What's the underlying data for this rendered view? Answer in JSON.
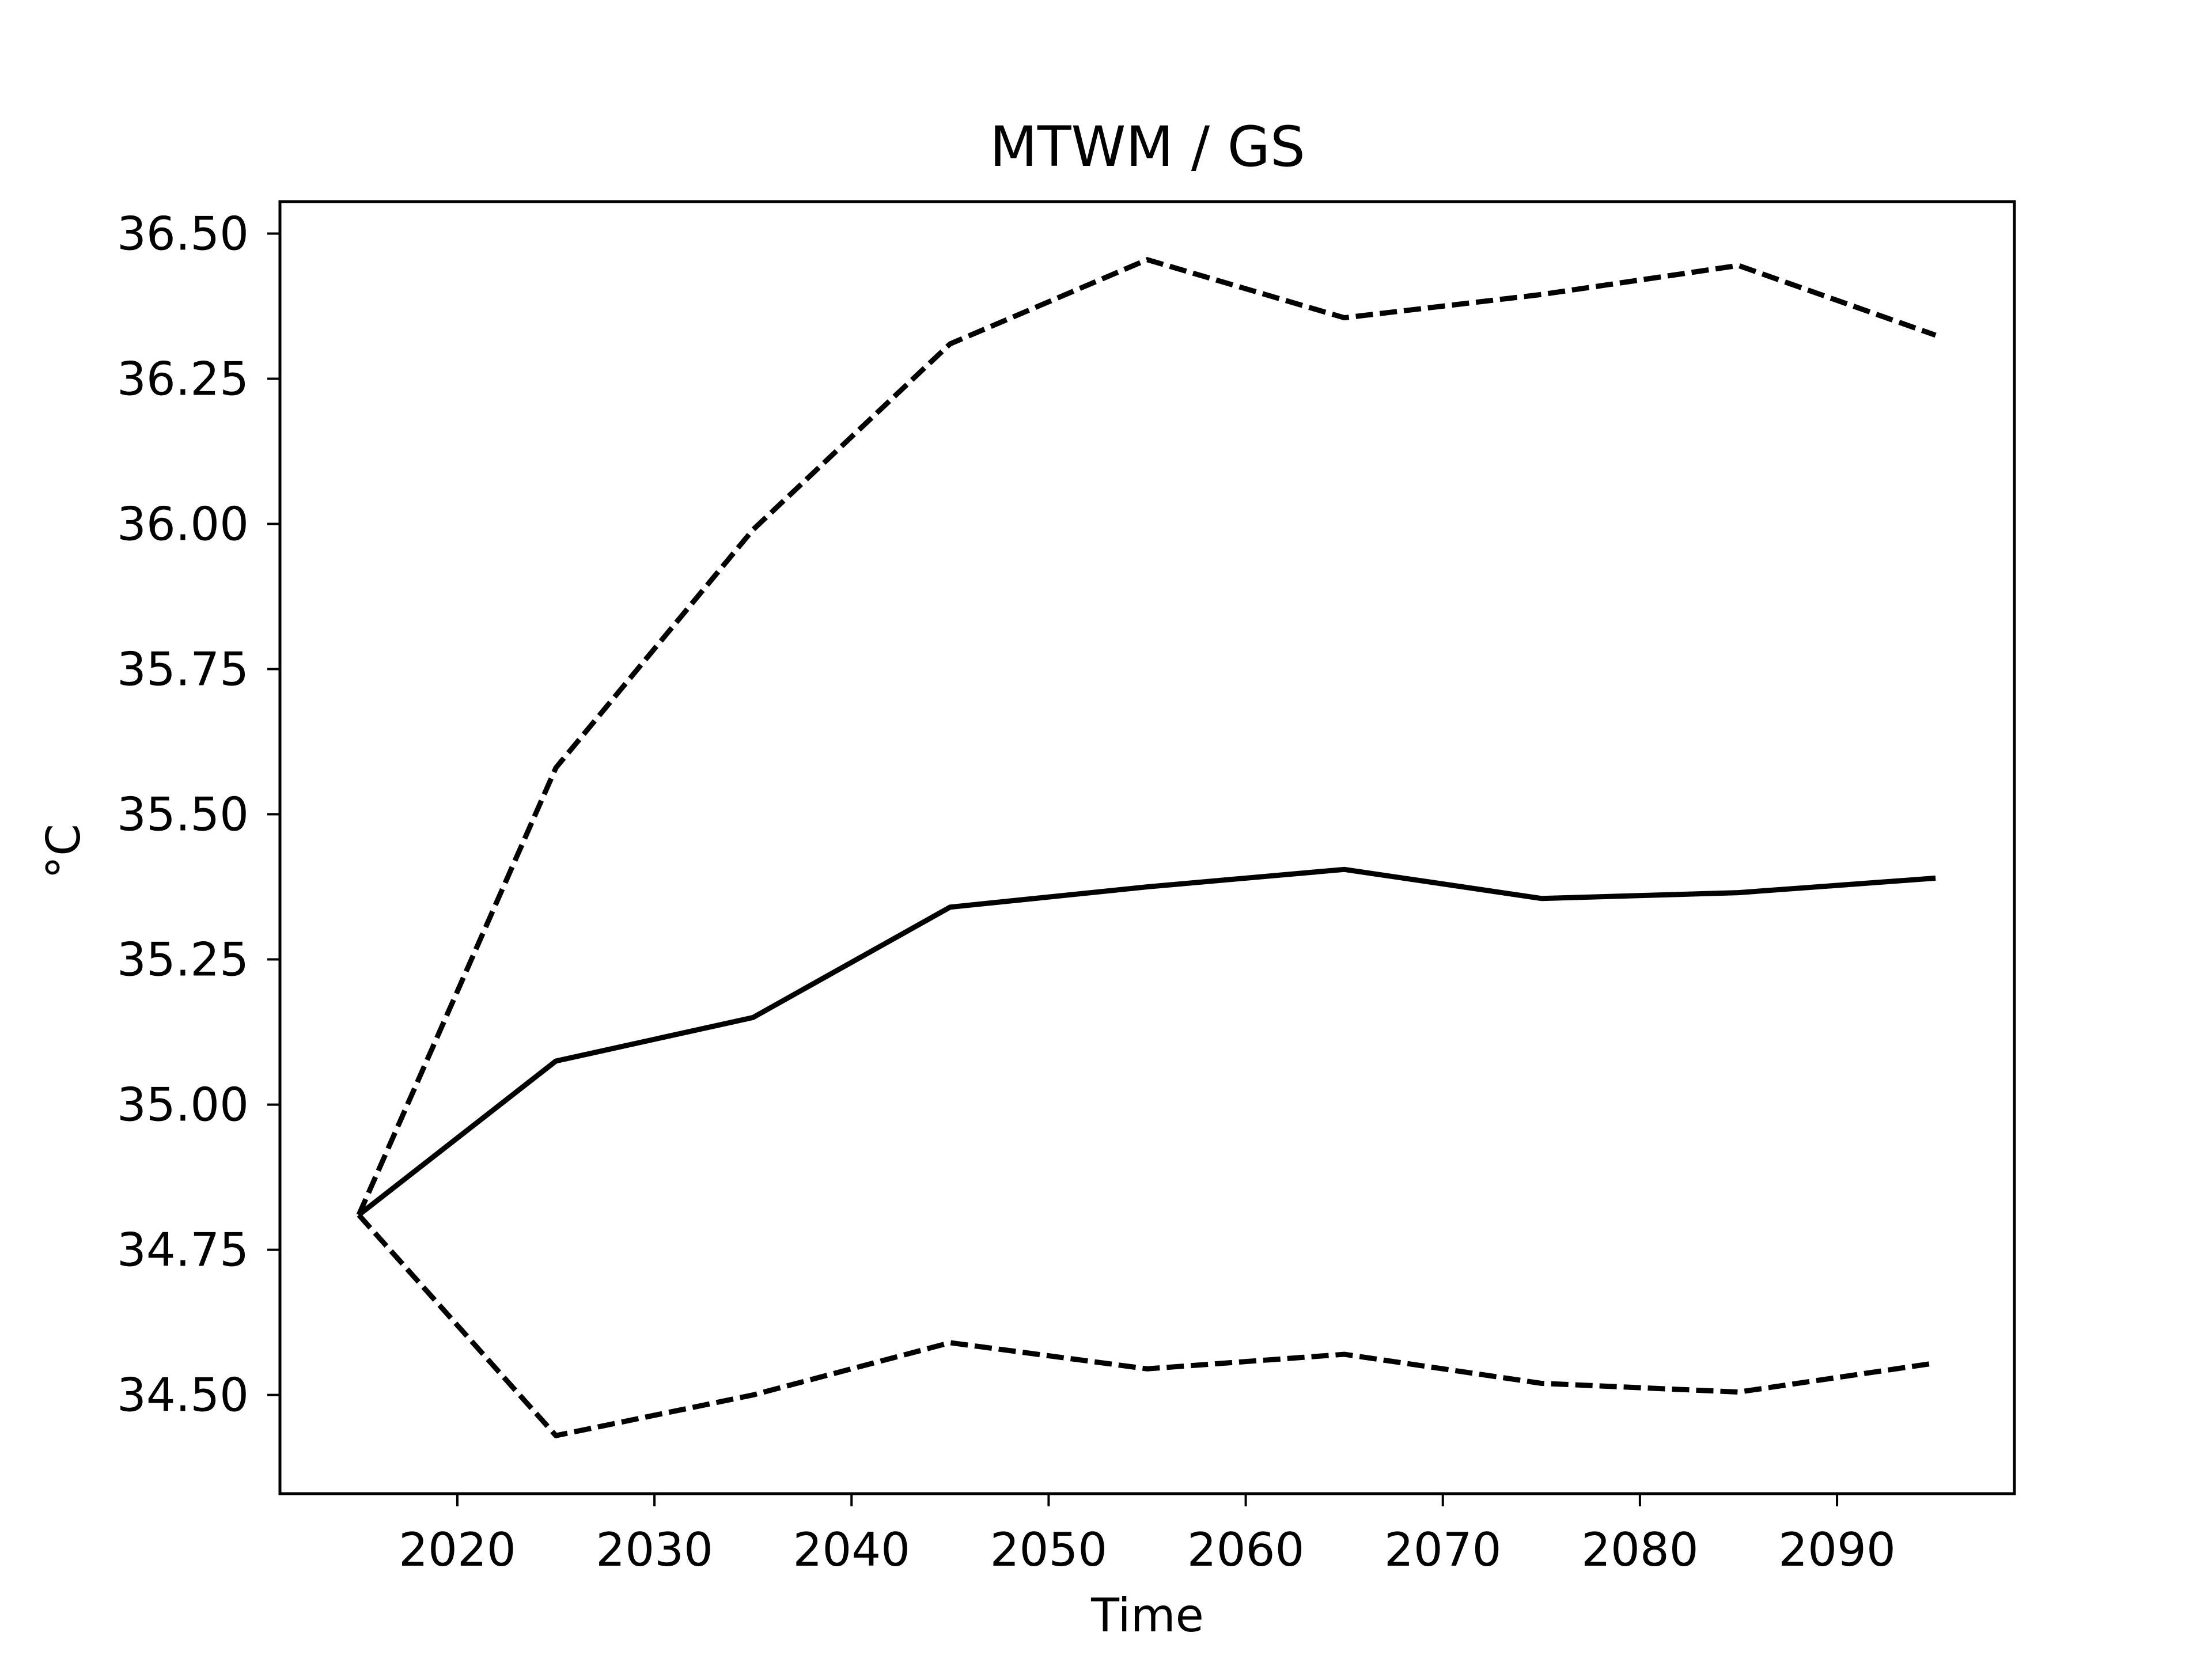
{
  "chart_data": {
    "type": "line",
    "title": "MTWM / GS",
    "xlabel": "Time",
    "ylabel": "°C",
    "x": [
      2015,
      2025,
      2035,
      2045,
      2055,
      2065,
      2075,
      2085,
      2095
    ],
    "xlim": [
      2011,
      2099
    ],
    "ylim": [
      34.33,
      36.555
    ],
    "xticks": [
      2020,
      2030,
      2040,
      2050,
      2060,
      2070,
      2080,
      2090
    ],
    "xtick_labels": [
      "2020",
      "2030",
      "2040",
      "2050",
      "2060",
      "2070",
      "2080",
      "2090"
    ],
    "yticks": [
      34.5,
      34.75,
      35.0,
      35.25,
      35.5,
      35.75,
      36.0,
      36.25,
      36.5
    ],
    "ytick_labels": [
      "34.50",
      "34.75",
      "35.00",
      "35.25",
      "35.50",
      "35.75",
      "36.00",
      "36.25",
      "36.50"
    ],
    "grid": false,
    "series": [
      {
        "style": "solid",
        "color": "#000000",
        "values": [
          34.81,
          35.075,
          35.15,
          35.34,
          35.375,
          35.405,
          35.355,
          35.365,
          35.39
        ]
      },
      {
        "style": "dashed",
        "color": "#000000",
        "values": [
          34.81,
          35.58,
          35.99,
          36.31,
          36.455,
          36.355,
          36.395,
          36.445,
          36.325
        ]
      },
      {
        "style": "dashed",
        "color": "#000000",
        "values": [
          34.81,
          34.43,
          34.5,
          34.59,
          34.545,
          34.57,
          34.52,
          34.505,
          34.555
        ]
      }
    ]
  }
}
